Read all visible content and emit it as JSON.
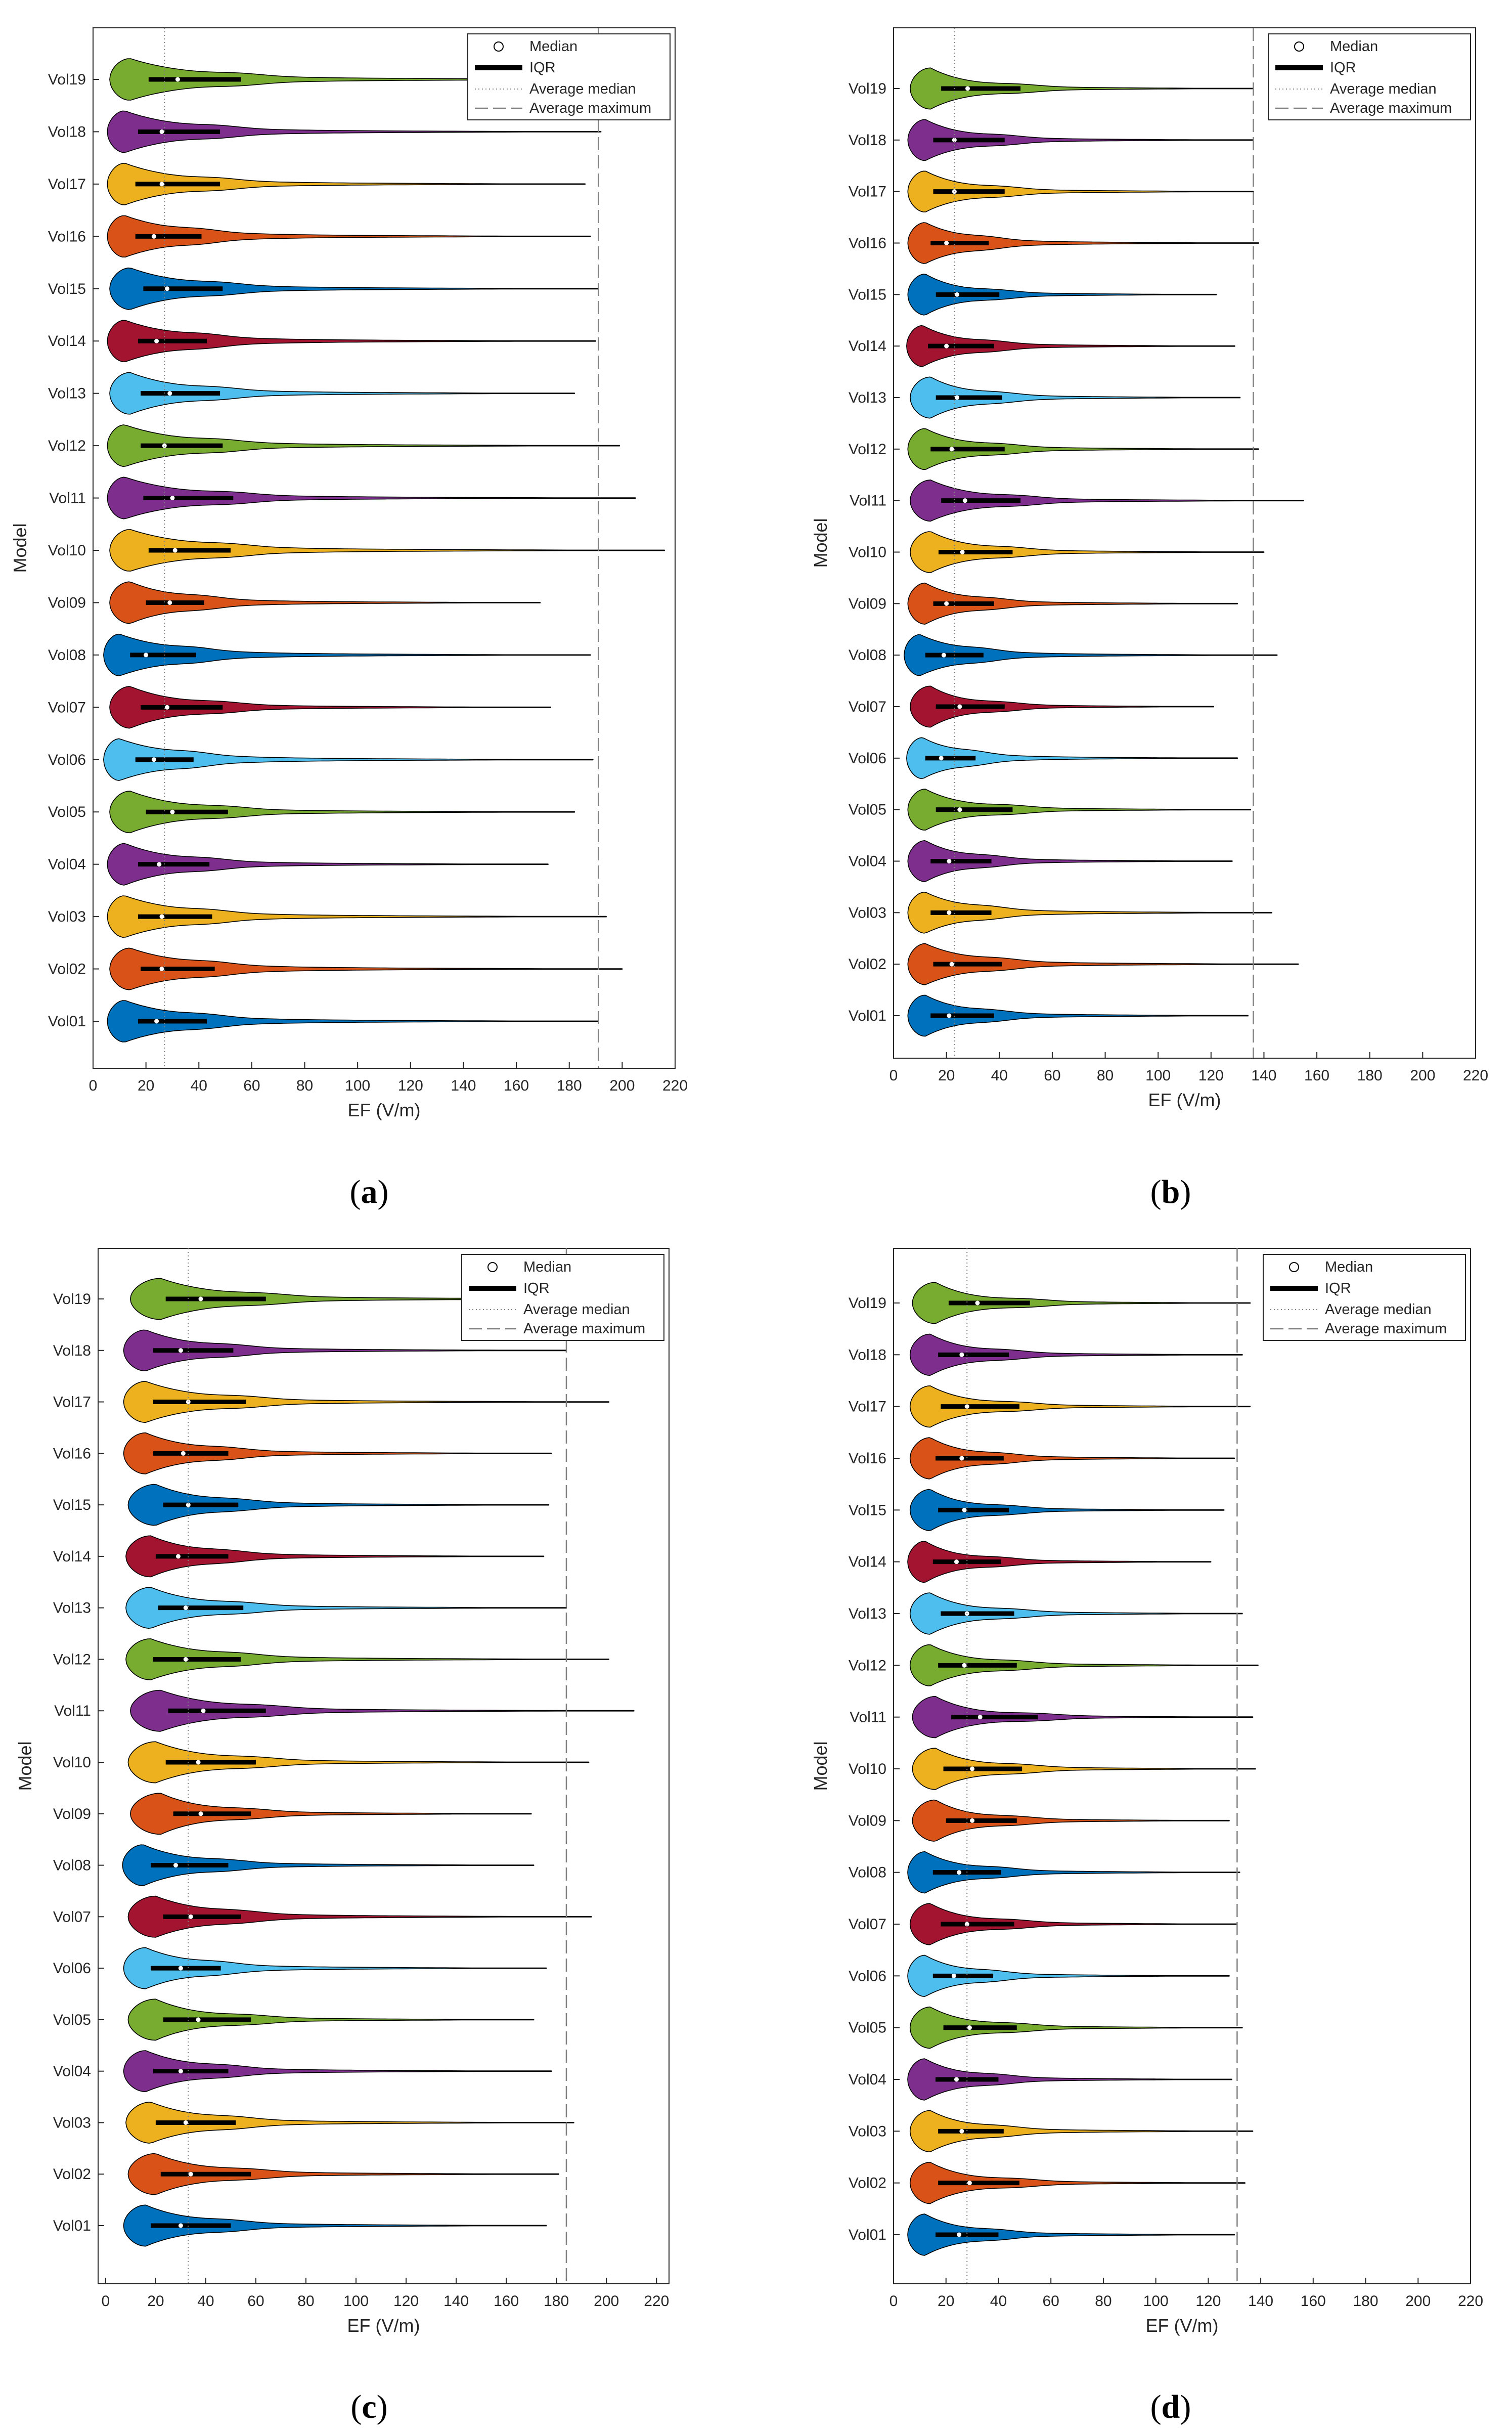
{
  "figure": {
    "captions": [
      "(a)",
      "(b)",
      "(c)",
      "(d)"
    ],
    "caption_parts": [
      {
        "open": "(",
        "letter": "a",
        "close": ")"
      },
      {
        "open": "(",
        "letter": "b",
        "close": ")"
      },
      {
        "open": "(",
        "letter": "c",
        "close": ")"
      },
      {
        "open": "(",
        "letter": "d",
        "close": ")"
      }
    ]
  },
  "colors": {
    "Vol01": "#0072BD",
    "Vol02": "#D95319",
    "Vol03": "#EDB120",
    "Vol04": "#7E2F8E",
    "Vol05": "#77AC30",
    "Vol06": "#4DBEEE",
    "Vol07": "#A2142F",
    "Vol08": "#0072BD",
    "Vol09": "#D95319",
    "Vol10": "#EDB120",
    "Vol11": "#7E2F8E",
    "Vol12": "#77AC30",
    "Vol13": "#4DBEEE",
    "Vol14": "#A2142F",
    "Vol15": "#0072BD",
    "Vol16": "#D95319",
    "Vol17": "#EDB120",
    "Vol18": "#7E2F8E",
    "Vol19": "#77AC30",
    "axis": "#262626",
    "reference_line": "#808080",
    "iqr": "#000000",
    "median": "#ffffff"
  },
  "chart_data": [
    {
      "type": "violin",
      "panel": "a",
      "xlabel": "EF (V/m)",
      "ylabel": "Model",
      "xlim": [
        0,
        220
      ],
      "xticks": [
        0,
        20,
        40,
        60,
        80,
        100,
        120,
        140,
        160,
        180,
        200,
        220
      ],
      "categories": [
        "Vol01",
        "Vol02",
        "Vol03",
        "Vol04",
        "Vol05",
        "Vol06",
        "Vol07",
        "Vol08",
        "Vol09",
        "Vol10",
        "Vol11",
        "Vol12",
        "Vol13",
        "Vol14",
        "Vol15",
        "Vol16",
        "Vol17",
        "Vol18",
        "Vol19"
      ],
      "legend": {
        "entries": [
          "Median",
          "IQR",
          "Average median",
          "Average maximum"
        ],
        "location": "top-right"
      },
      "average_median": 27,
      "average_maximum": 191,
      "series": [
        {
          "name": "Vol01",
          "q1": 17,
          "median": 24,
          "q3": 43,
          "max": 191,
          "mode": 12
        },
        {
          "name": "Vol02",
          "q1": 18,
          "median": 26,
          "q3": 46,
          "max": 200,
          "mode": 14
        },
        {
          "name": "Vol03",
          "q1": 17,
          "median": 26,
          "q3": 45,
          "max": 194,
          "mode": 12
        },
        {
          "name": "Vol04",
          "q1": 17,
          "median": 25,
          "q3": 44,
          "max": 172,
          "mode": 12
        },
        {
          "name": "Vol05",
          "q1": 20,
          "median": 30,
          "q3": 51,
          "max": 182,
          "mode": 14
        },
        {
          "name": "Vol06",
          "q1": 16,
          "median": 23,
          "q3": 38,
          "max": 189,
          "mode": 10
        },
        {
          "name": "Vol07",
          "q1": 18,
          "median": 28,
          "q3": 49,
          "max": 173,
          "mode": 14
        },
        {
          "name": "Vol08",
          "q1": 14,
          "median": 20,
          "q3": 39,
          "max": 188,
          "mode": 10
        },
        {
          "name": "Vol09",
          "q1": 20,
          "median": 29,
          "q3": 42,
          "max": 169,
          "mode": 14
        },
        {
          "name": "Vol10",
          "q1": 21,
          "median": 31,
          "q3": 52,
          "max": 216,
          "mode": 14
        },
        {
          "name": "Vol11",
          "q1": 19,
          "median": 30,
          "q3": 53,
          "max": 205,
          "mode": 12
        },
        {
          "name": "Vol12",
          "q1": 18,
          "median": 27,
          "q3": 49,
          "max": 199,
          "mode": 12
        },
        {
          "name": "Vol13",
          "q1": 18,
          "median": 29,
          "q3": 48,
          "max": 182,
          "mode": 14
        },
        {
          "name": "Vol14",
          "q1": 17,
          "median": 24,
          "q3": 43,
          "max": 190,
          "mode": 12
        },
        {
          "name": "Vol15",
          "q1": 19,
          "median": 28,
          "q3": 49,
          "max": 191,
          "mode": 14
        },
        {
          "name": "Vol16",
          "q1": 16,
          "median": 23,
          "q3": 41,
          "max": 188,
          "mode": 12
        },
        {
          "name": "Vol17",
          "q1": 16,
          "median": 26,
          "q3": 48,
          "max": 186,
          "mode": 12
        },
        {
          "name": "Vol18",
          "q1": 17,
          "median": 26,
          "q3": 48,
          "max": 192,
          "mode": 12
        },
        {
          "name": "Vol19",
          "q1": 21,
          "median": 32,
          "q3": 56,
          "max": 218,
          "mode": 14
        }
      ]
    },
    {
      "type": "violin",
      "panel": "b",
      "xlabel": "EF (V/m)",
      "ylabel": "Model",
      "xlim": [
        0,
        220
      ],
      "xticks": [
        0,
        20,
        40,
        60,
        80,
        100,
        120,
        140,
        160,
        180,
        200,
        220
      ],
      "categories": [
        "Vol01",
        "Vol02",
        "Vol03",
        "Vol04",
        "Vol05",
        "Vol06",
        "Vol07",
        "Vol08",
        "Vol09",
        "Vol10",
        "Vol11",
        "Vol12",
        "Vol13",
        "Vol14",
        "Vol15",
        "Vol16",
        "Vol17",
        "Vol18",
        "Vol19"
      ],
      "legend": {
        "entries": [
          "Median",
          "IQR",
          "Average median",
          "Average maximum"
        ],
        "location": "top-right"
      },
      "average_median": 23,
      "average_maximum": 136,
      "series": [
        {
          "name": "Vol01",
          "q1": 14,
          "median": 21,
          "q3": 38,
          "max": 134,
          "mode": 12
        },
        {
          "name": "Vol02",
          "q1": 15,
          "median": 22,
          "q3": 41,
          "max": 153,
          "mode": 12
        },
        {
          "name": "Vol03",
          "q1": 14,
          "median": 21,
          "q3": 37,
          "max": 143,
          "mode": 12
        },
        {
          "name": "Vol04",
          "q1": 14,
          "median": 21,
          "q3": 37,
          "max": 128,
          "mode": 12
        },
        {
          "name": "Vol05",
          "q1": 16,
          "median": 25,
          "q3": 45,
          "max": 135,
          "mode": 12
        },
        {
          "name": "Vol06",
          "q1": 12,
          "median": 18,
          "q3": 31,
          "max": 130,
          "mode": 11
        },
        {
          "name": "Vol07",
          "q1": 16,
          "median": 25,
          "q3": 42,
          "max": 121,
          "mode": 14
        },
        {
          "name": "Vol08",
          "q1": 12,
          "median": 19,
          "q3": 34,
          "max": 145,
          "mode": 10
        },
        {
          "name": "Vol09",
          "q1": 15,
          "median": 20,
          "q3": 38,
          "max": 130,
          "mode": 12
        },
        {
          "name": "Vol10",
          "q1": 17,
          "median": 26,
          "q3": 45,
          "max": 140,
          "mode": 14
        },
        {
          "name": "Vol11",
          "q1": 18,
          "median": 27,
          "q3": 48,
          "max": 155,
          "mode": 14
        },
        {
          "name": "Vol12",
          "q1": 14,
          "median": 22,
          "q3": 42,
          "max": 138,
          "mode": 12
        },
        {
          "name": "Vol13",
          "q1": 16,
          "median": 24,
          "q3": 41,
          "max": 131,
          "mode": 14
        },
        {
          "name": "Vol14",
          "q1": 13,
          "median": 20,
          "q3": 38,
          "max": 129,
          "mode": 11
        },
        {
          "name": "Vol15",
          "q1": 16,
          "median": 24,
          "q3": 40,
          "max": 122,
          "mode": 12
        },
        {
          "name": "Vol16",
          "q1": 14,
          "median": 20,
          "q3": 36,
          "max": 138,
          "mode": 12
        },
        {
          "name": "Vol17",
          "q1": 15,
          "median": 23,
          "q3": 42,
          "max": 136,
          "mode": 12
        },
        {
          "name": "Vol18",
          "q1": 15,
          "median": 23,
          "q3": 42,
          "max": 136,
          "mode": 12
        },
        {
          "name": "Vol19",
          "q1": 18,
          "median": 28,
          "q3": 48,
          "max": 136,
          "mode": 14
        }
      ]
    },
    {
      "type": "violin",
      "panel": "c",
      "xlabel": "EF (V/m)",
      "ylabel": "Model",
      "xlim": [
        -3,
        225
      ],
      "xticks": [
        0,
        20,
        40,
        60,
        80,
        100,
        120,
        140,
        160,
        180,
        200,
        220
      ],
      "categories": [
        "Vol01",
        "Vol02",
        "Vol03",
        "Vol04",
        "Vol05",
        "Vol06",
        "Vol07",
        "Vol08",
        "Vol09",
        "Vol10",
        "Vol11",
        "Vol12",
        "Vol13",
        "Vol14",
        "Vol15",
        "Vol16",
        "Vol17",
        "Vol18",
        "Vol19"
      ],
      "legend": {
        "entries": [
          "Median",
          "IQR",
          "Average median",
          "Average maximum"
        ],
        "location": "top-right"
      },
      "average_median": 33,
      "average_maximum": 184,
      "series": [
        {
          "name": "Vol01",
          "q1": 18,
          "median": 30,
          "q3": 50,
          "max": 176,
          "mode": 16
        },
        {
          "name": "Vol02",
          "q1": 22,
          "median": 34,
          "q3": 58,
          "max": 181,
          "mode": 20
        },
        {
          "name": "Vol03",
          "q1": 20,
          "median": 32,
          "q3": 52,
          "max": 187,
          "mode": 18
        },
        {
          "name": "Vol04",
          "q1": 19,
          "median": 30,
          "q3": 49,
          "max": 178,
          "mode": 16
        },
        {
          "name": "Vol05",
          "q1": 23,
          "median": 37,
          "q3": 58,
          "max": 171,
          "mode": 20
        },
        {
          "name": "Vol06",
          "q1": 18,
          "median": 30,
          "q3": 46,
          "max": 176,
          "mode": 16
        },
        {
          "name": "Vol07",
          "q1": 23,
          "median": 34,
          "q3": 54,
          "max": 194,
          "mode": 20
        },
        {
          "name": "Vol08",
          "q1": 18,
          "median": 28,
          "q3": 49,
          "max": 171,
          "mode": 15
        },
        {
          "name": "Vol09",
          "q1": 27,
          "median": 38,
          "q3": 58,
          "max": 170,
          "mode": 22
        },
        {
          "name": "Vol10",
          "q1": 24,
          "median": 37,
          "q3": 60,
          "max": 193,
          "mode": 20
        },
        {
          "name": "Vol11",
          "q1": 25,
          "median": 39,
          "q3": 64,
          "max": 211,
          "mode": 22
        },
        {
          "name": "Vol12",
          "q1": 19,
          "median": 32,
          "q3": 54,
          "max": 201,
          "mode": 18
        },
        {
          "name": "Vol13",
          "q1": 21,
          "median": 32,
          "q3": 55,
          "max": 184,
          "mode": 18
        },
        {
          "name": "Vol14",
          "q1": 20,
          "median": 29,
          "q3": 49,
          "max": 175,
          "mode": 18
        },
        {
          "name": "Vol15",
          "q1": 23,
          "median": 33,
          "q3": 53,
          "max": 177,
          "mode": 20
        },
        {
          "name": "Vol16",
          "q1": 19,
          "median": 31,
          "q3": 49,
          "max": 178,
          "mode": 16
        },
        {
          "name": "Vol17",
          "q1": 19,
          "median": 33,
          "q3": 56,
          "max": 201,
          "mode": 16
        },
        {
          "name": "Vol18",
          "q1": 19,
          "median": 30,
          "q3": 51,
          "max": 184,
          "mode": 16
        },
        {
          "name": "Vol19",
          "q1": 24,
          "median": 38,
          "q3": 64,
          "max": 215,
          "mode": 22
        }
      ]
    },
    {
      "type": "violin",
      "panel": "d",
      "xlabel": "EF (V/m)",
      "ylabel": "Model",
      "xlim": [
        0,
        220
      ],
      "xticks": [
        0,
        20,
        40,
        60,
        80,
        100,
        120,
        140,
        160,
        180,
        200,
        220
      ],
      "categories": [
        "Vol01",
        "Vol02",
        "Vol03",
        "Vol04",
        "Vol05",
        "Vol06",
        "Vol07",
        "Vol08",
        "Vol09",
        "Vol10",
        "Vol11",
        "Vol12",
        "Vol13",
        "Vol14",
        "Vol15",
        "Vol16",
        "Vol17",
        "Vol18",
        "Vol19"
      ],
      "legend": {
        "entries": [
          "Median",
          "IQR",
          "Average median",
          "Average maximum"
        ],
        "location": "top-right"
      },
      "average_median": 28,
      "average_maximum": 131,
      "series": [
        {
          "name": "Vol01",
          "q1": 16,
          "median": 25,
          "q3": 40,
          "max": 130,
          "mode": 12
        },
        {
          "name": "Vol02",
          "q1": 17,
          "median": 29,
          "q3": 48,
          "max": 134,
          "mode": 14
        },
        {
          "name": "Vol03",
          "q1": 17,
          "median": 26,
          "q3": 42,
          "max": 137,
          "mode": 14
        },
        {
          "name": "Vol04",
          "q1": 16,
          "median": 24,
          "q3": 40,
          "max": 129,
          "mode": 12
        },
        {
          "name": "Vol05",
          "q1": 19,
          "median": 29,
          "q3": 47,
          "max": 133,
          "mode": 14
        },
        {
          "name": "Vol06",
          "q1": 15,
          "median": 23,
          "q3": 38,
          "max": 128,
          "mode": 12
        },
        {
          "name": "Vol07",
          "q1": 18,
          "median": 28,
          "q3": 46,
          "max": 131,
          "mode": 14
        },
        {
          "name": "Vol08",
          "q1": 15,
          "median": 25,
          "q3": 41,
          "max": 132,
          "mode": 12
        },
        {
          "name": "Vol09",
          "q1": 20,
          "median": 30,
          "q3": 47,
          "max": 128,
          "mode": 16
        },
        {
          "name": "Vol10",
          "q1": 19,
          "median": 30,
          "q3": 49,
          "max": 138,
          "mode": 16
        },
        {
          "name": "Vol11",
          "q1": 22,
          "median": 33,
          "q3": 55,
          "max": 137,
          "mode": 16
        },
        {
          "name": "Vol12",
          "q1": 17,
          "median": 27,
          "q3": 47,
          "max": 139,
          "mode": 14
        },
        {
          "name": "Vol13",
          "q1": 18,
          "median": 28,
          "q3": 46,
          "max": 133,
          "mode": 14
        },
        {
          "name": "Vol14",
          "q1": 15,
          "median": 24,
          "q3": 41,
          "max": 121,
          "mode": 12
        },
        {
          "name": "Vol15",
          "q1": 17,
          "median": 27,
          "q3": 44,
          "max": 126,
          "mode": 14
        },
        {
          "name": "Vol16",
          "q1": 16,
          "median": 26,
          "q3": 42,
          "max": 130,
          "mode": 14
        },
        {
          "name": "Vol17",
          "q1": 18,
          "median": 28,
          "q3": 48,
          "max": 136,
          "mode": 14
        },
        {
          "name": "Vol18",
          "q1": 17,
          "median": 26,
          "q3": 44,
          "max": 133,
          "mode": 14
        },
        {
          "name": "Vol19",
          "q1": 21,
          "median": 32,
          "q3": 52,
          "max": 136,
          "mode": 16
        }
      ]
    }
  ]
}
